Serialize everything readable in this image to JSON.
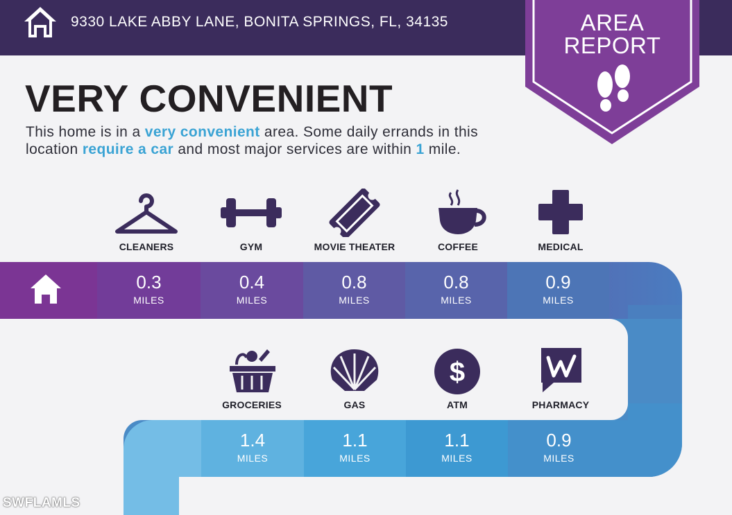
{
  "header": {
    "address": "9330 LAKE ABBY LANE, BONITA SPRINGS, FL, 34135"
  },
  "badge": {
    "line1": "AREA",
    "line2": "REPORT"
  },
  "title": "VERY CONVENIENT",
  "description": {
    "p1": "This home is in a ",
    "h1": "very convenient",
    "p2": " area. Some daily errands in this location ",
    "h2": "require a car",
    "p3": " and most major services are within ",
    "h3": "1",
    "p4": " mile."
  },
  "amenities_row1": [
    {
      "label": "CLEANERS",
      "icon": "hanger-icon",
      "distance": "0.3",
      "unit": "MILES"
    },
    {
      "label": "GYM",
      "icon": "dumbbell-icon",
      "distance": "0.4",
      "unit": "MILES"
    },
    {
      "label": "MOVIE THEATER",
      "icon": "ticket-icon",
      "distance": "0.8",
      "unit": "MILES"
    },
    {
      "label": "COFFEE",
      "icon": "coffee-cup-icon",
      "distance": "0.8",
      "unit": "MILES"
    },
    {
      "label": "MEDICAL",
      "icon": "medical-cross-icon",
      "distance": "0.9",
      "unit": "MILES"
    }
  ],
  "amenities_row2": [
    {
      "label": "GROCERIES",
      "icon": "grocery-basket-icon",
      "distance": "1.4",
      "unit": "MILES"
    },
    {
      "label": "GAS",
      "icon": "shell-icon",
      "distance": "1.1",
      "unit": "MILES"
    },
    {
      "label": "ATM",
      "icon": "dollar-icon",
      "distance": "1.1",
      "unit": "MILES"
    },
    {
      "label": "PHARMACY",
      "icon": "walgreens-icon",
      "distance": "0.9",
      "unit": "MILES"
    }
  ],
  "watermark": "SWFLAMLS",
  "colors": {
    "header": "#3b2c5c",
    "badge": "#7e3e98",
    "accent": "#3aa3d4",
    "icon": "#3b2c5c"
  }
}
